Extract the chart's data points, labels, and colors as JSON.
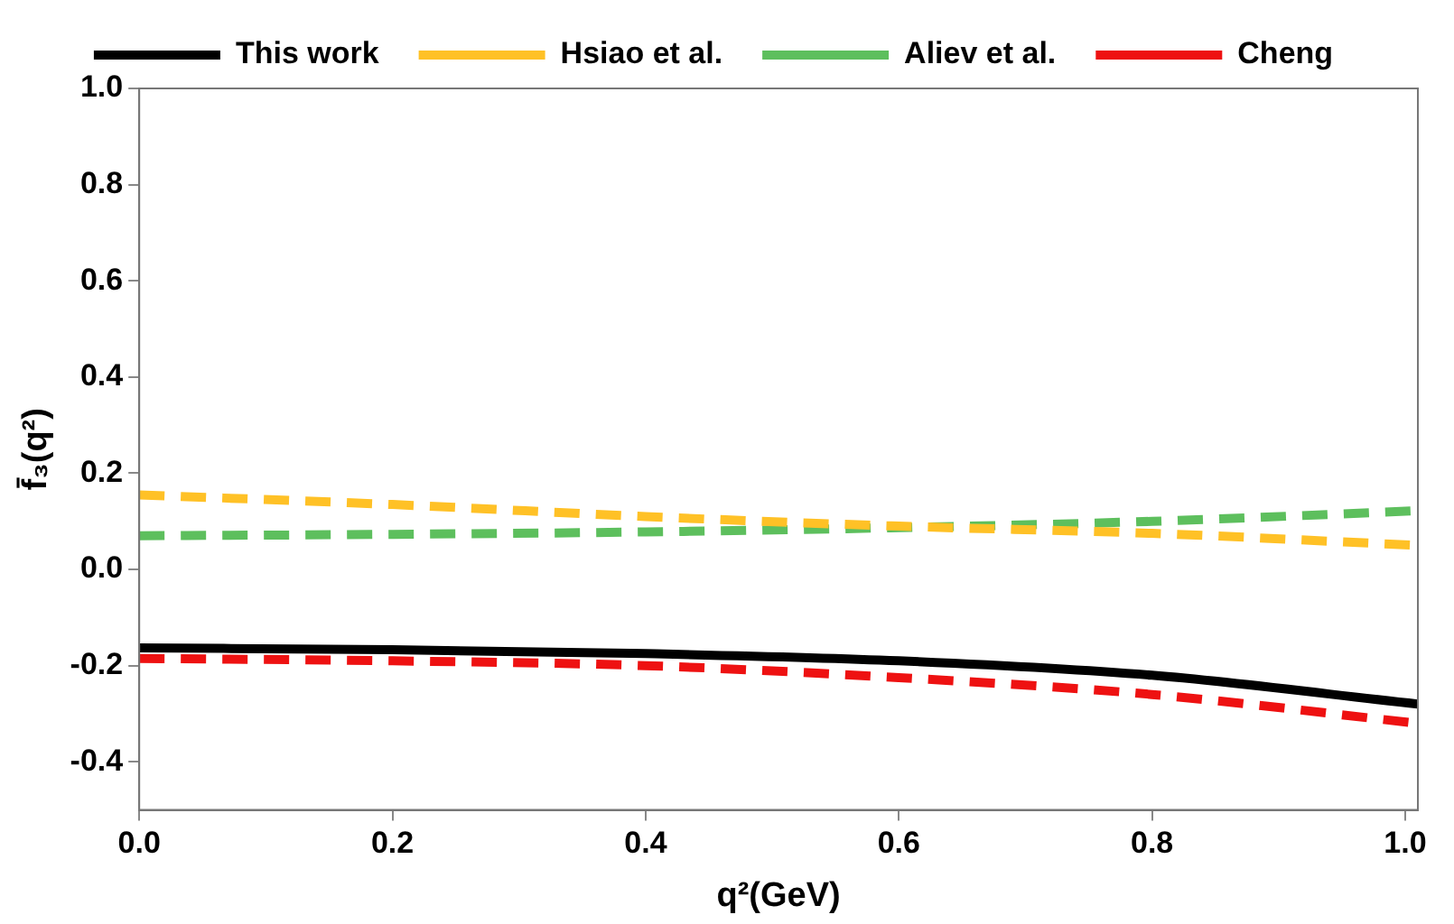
{
  "chart_data": {
    "type": "line",
    "xlabel": "q²(GeV)",
    "ylabel": "f̄₃(q²)",
    "xlim": [
      0,
      1.01
    ],
    "xticks": [
      {
        "value": 0,
        "label": "0.0"
      },
      0.2,
      0.4,
      0.6,
      0.8,
      {
        "value": 1,
        "label": "1.0"
      }
    ],
    "ylim": [
      -0.5,
      1.0
    ],
    "yticks": [
      -0.4,
      -0.2,
      {
        "value": 0,
        "label": "0.0"
      },
      0.2,
      0.4,
      0.6,
      0.8,
      {
        "value": 1,
        "label": "1.0"
      }
    ],
    "grid": false,
    "legend": "top",
    "marker": "none",
    "x": [
      0,
      0.2,
      0.4,
      0.6,
      0.8,
      1.01
    ],
    "series": [
      {
        "name": "This work",
        "color": "#000000",
        "line_style": "solid",
        "values": [
          -0.163,
          -0.167,
          -0.175,
          -0.19,
          -0.22,
          -0.28
        ]
      },
      {
        "name": "Hsiao et al.",
        "color": "#ffc126",
        "line_style": "dashed",
        "values": [
          0.155,
          0.135,
          0.11,
          0.09,
          0.075,
          0.05
        ]
      },
      {
        "name": "Aliev et al.",
        "color": "#5dbf5d",
        "line_style": "dashed",
        "values": [
          0.07,
          0.073,
          0.078,
          0.087,
          0.1,
          0.122
        ]
      },
      {
        "name": "Cheng",
        "color": "#ee1111",
        "line_style": "dashed",
        "values": [
          -0.185,
          -0.19,
          -0.2,
          -0.225,
          -0.26,
          -0.32
        ]
      }
    ]
  }
}
